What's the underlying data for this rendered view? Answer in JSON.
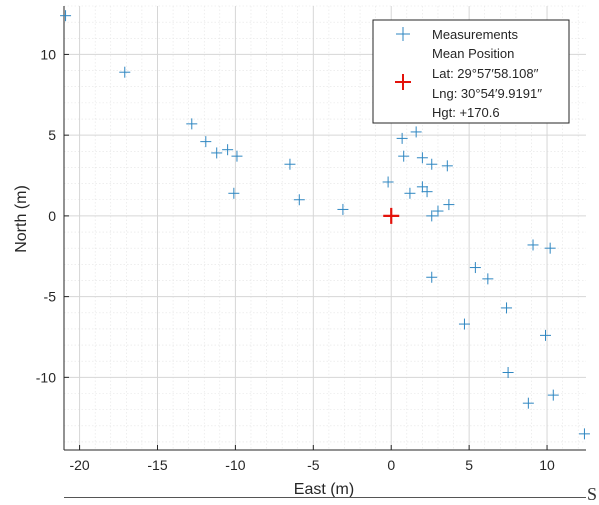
{
  "chart_data": {
    "type": "scatter",
    "xlabel": "East (m)",
    "ylabel": "North (m)",
    "xlim": [
      -21,
      12.5
    ],
    "ylim": [
      -14.5,
      13
    ],
    "xticks": [
      -20,
      -15,
      -10,
      -5,
      0,
      5,
      10
    ],
    "yticks": [
      -10,
      -5,
      0,
      5,
      10
    ],
    "grid": true,
    "minor_grid": true,
    "legend_location": "top-right",
    "series": [
      {
        "name": "Measurements",
        "marker": "plus",
        "color": "#2E86C1",
        "points": [
          {
            "x": -20.9,
            "y": 12.4
          },
          {
            "x": -17.1,
            "y": 8.9
          },
          {
            "x": -12.8,
            "y": 5.7
          },
          {
            "x": -11.9,
            "y": 4.6
          },
          {
            "x": -11.2,
            "y": 3.9
          },
          {
            "x": -10.5,
            "y": 4.1
          },
          {
            "x": -9.9,
            "y": 3.7
          },
          {
            "x": -10.1,
            "y": 1.4
          },
          {
            "x": -6.5,
            "y": 3.2
          },
          {
            "x": -5.9,
            "y": 1.0
          },
          {
            "x": -3.1,
            "y": 0.4
          },
          {
            "x": -0.2,
            "y": 2.1
          },
          {
            "x": 0.7,
            "y": 4.8
          },
          {
            "x": 0.8,
            "y": 3.7
          },
          {
            "x": 1.6,
            "y": 5.2
          },
          {
            "x": 2.0,
            "y": 3.6
          },
          {
            "x": 1.2,
            "y": 1.4
          },
          {
            "x": 2.0,
            "y": 1.8
          },
          {
            "x": 2.3,
            "y": 1.5
          },
          {
            "x": 2.6,
            "y": 3.2
          },
          {
            "x": 3.6,
            "y": 3.1
          },
          {
            "x": 2.6,
            "y": 0.0
          },
          {
            "x": 3.0,
            "y": 0.3
          },
          {
            "x": 3.7,
            "y": 0.7
          },
          {
            "x": 2.6,
            "y": -3.8
          },
          {
            "x": 4.7,
            "y": -6.7
          },
          {
            "x": 5.4,
            "y": -3.2
          },
          {
            "x": 6.2,
            "y": -3.9
          },
          {
            "x": 7.4,
            "y": -5.7
          },
          {
            "x": 7.5,
            "y": -9.7
          },
          {
            "x": 9.1,
            "y": -1.8
          },
          {
            "x": 10.2,
            "y": -2.0
          },
          {
            "x": 9.9,
            "y": -7.4
          },
          {
            "x": 8.8,
            "y": -11.6
          },
          {
            "x": 10.4,
            "y": -11.1
          },
          {
            "x": 12.4,
            "y": -13.5
          }
        ]
      },
      {
        "name": "Mean Position",
        "marker": "plus",
        "color": "#E3120B",
        "points": [
          {
            "x": 0.0,
            "y": 0.0
          }
        ]
      }
    ],
    "legend": {
      "measurements_label": "Measurements",
      "mean_label": "Mean Position",
      "lat": "Lat: 29°57′58.108′′",
      "lng": "Lng: 30°54′9.9191′′",
      "hgt": "Hgt: +170.6"
    }
  },
  "stray_text": "S"
}
